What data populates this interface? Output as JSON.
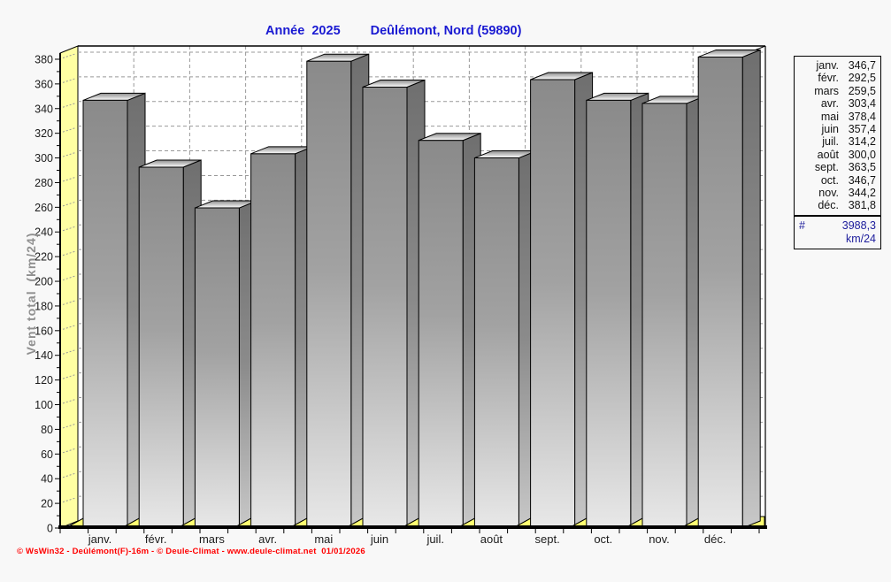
{
  "title": {
    "year_label": "Année  2025",
    "station_label": "Deûlémont, Nord (59890)"
  },
  "y_axis": {
    "title": "Vent total  (km/24)",
    "min": 0,
    "max": 380,
    "tick_step": 20,
    "minor_tick_step": 10
  },
  "x_axis": {
    "labels": [
      "janv.",
      "févr.",
      "mars",
      "avr.",
      "mai",
      "juin",
      "juil.",
      "août",
      "sept.",
      "oct.",
      "nov.",
      "déc."
    ]
  },
  "legend": {
    "entries": [
      {
        "label": "janv.",
        "value": "346,7"
      },
      {
        "label": "févr.",
        "value": "292,5"
      },
      {
        "label": "mars",
        "value": "259,5"
      },
      {
        "label": "avr.",
        "value": "303,4"
      },
      {
        "label": "mai",
        "value": "378,4"
      },
      {
        "label": "juin",
        "value": "357,4"
      },
      {
        "label": "juil.",
        "value": "314,2"
      },
      {
        "label": "août",
        "value": "300,0"
      },
      {
        "label": "sept.",
        "value": "363,5"
      },
      {
        "label": "oct.",
        "value": "346,7"
      },
      {
        "label": "nov.",
        "value": "344,2"
      },
      {
        "label": "déc.",
        "value": "381,8"
      }
    ],
    "total_symbol": "#",
    "total_value": "3988,3",
    "total_unit": "km/24"
  },
  "footer": {
    "text": "© WsWin32 - Deûlémont(F)-16m - © Deule-Climat - www.deule-climat.net  01/01/2026"
  },
  "colors": {
    "title_blue": "#1a1ad2",
    "footer_red": "#ff0000",
    "legend_text": "#141414",
    "legend_total": "#1c1c9c",
    "axis_text": "#1c1c1c",
    "y_title_gray": "#8f8f8f",
    "grid_gray": "#999999",
    "wall_yellow": "#ffffa3",
    "floor_yellow": "#ffff70",
    "wall_white": "#ffffff",
    "bar_front_top": "#8a8a8a",
    "bar_front_bottom": "#e8e8e8",
    "bar_side_top": "#6f6f6f",
    "bar_side_bottom": "#c8c8c8",
    "bar_top_front": "#ffffff",
    "bar_top_back": "#8c8c8c"
  },
  "chart_data": {
    "type": "bar",
    "title": "Année 2025 — Deûlémont, Nord (59890)",
    "xlabel": "",
    "ylabel": "Vent total (km/24)",
    "unit": "km/24",
    "categories": [
      "janv.",
      "févr.",
      "mars",
      "avr.",
      "mai",
      "juin",
      "juil.",
      "août",
      "sept.",
      "oct.",
      "nov.",
      "déc."
    ],
    "values": [
      346.7,
      292.5,
      259.5,
      303.4,
      378.4,
      357.4,
      314.2,
      300.0,
      363.5,
      346.7,
      344.2,
      381.8
    ],
    "total": 3988.3,
    "ylim": [
      0,
      380
    ],
    "grid": true,
    "legend_position": "right",
    "style": "3d-gray-bars-yellow-floor"
  }
}
